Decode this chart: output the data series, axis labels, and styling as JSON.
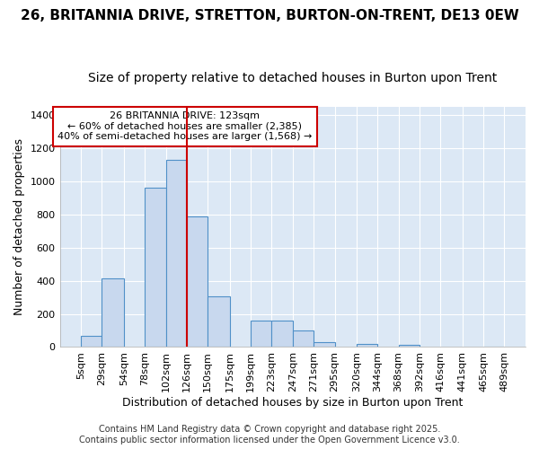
{
  "title1": "26, BRITANNIA DRIVE, STRETTON, BURTON-ON-TRENT, DE13 0EW",
  "title2": "Size of property relative to detached houses in Burton upon Trent",
  "xlabel": "Distribution of detached houses by size in Burton upon Trent",
  "ylabel": "Number of detached properties",
  "bin_edges": [
    5,
    29,
    54,
    78,
    102,
    126,
    150,
    175,
    199,
    223,
    247,
    271,
    295,
    320,
    344,
    368,
    392,
    416,
    441,
    465,
    489
  ],
  "bar_heights": [
    65,
    415,
    0,
    960,
    1130,
    790,
    305,
    0,
    160,
    160,
    100,
    30,
    0,
    20,
    0,
    15,
    0,
    0,
    0,
    5
  ],
  "bar_color": "#c8d8ee",
  "bar_edge_color": "#5090c8",
  "vline_x": 126,
  "vline_color": "#cc0000",
  "annotation_title": "26 BRITANNIA DRIVE: 123sqm",
  "annotation_line1": "← 60% of detached houses are smaller (2,385)",
  "annotation_line2": "40% of semi-detached houses are larger (1,568) →",
  "annotation_box_color": "#ffffff",
  "annotation_edge_color": "#cc0000",
  "ylim": [
    0,
    1450
  ],
  "yticks": [
    0,
    200,
    400,
    600,
    800,
    1000,
    1200,
    1400
  ],
  "plot_bg_color": "#dce8f5",
  "fig_bg_color": "#ffffff",
  "footer1": "Contains HM Land Registry data © Crown copyright and database right 2025.",
  "footer2": "Contains public sector information licensed under the Open Government Licence v3.0.",
  "title_fontsize": 11,
  "subtitle_fontsize": 10,
  "axis_label_fontsize": 9,
  "tick_fontsize": 8,
  "annotation_fontsize": 8,
  "footer_fontsize": 7
}
